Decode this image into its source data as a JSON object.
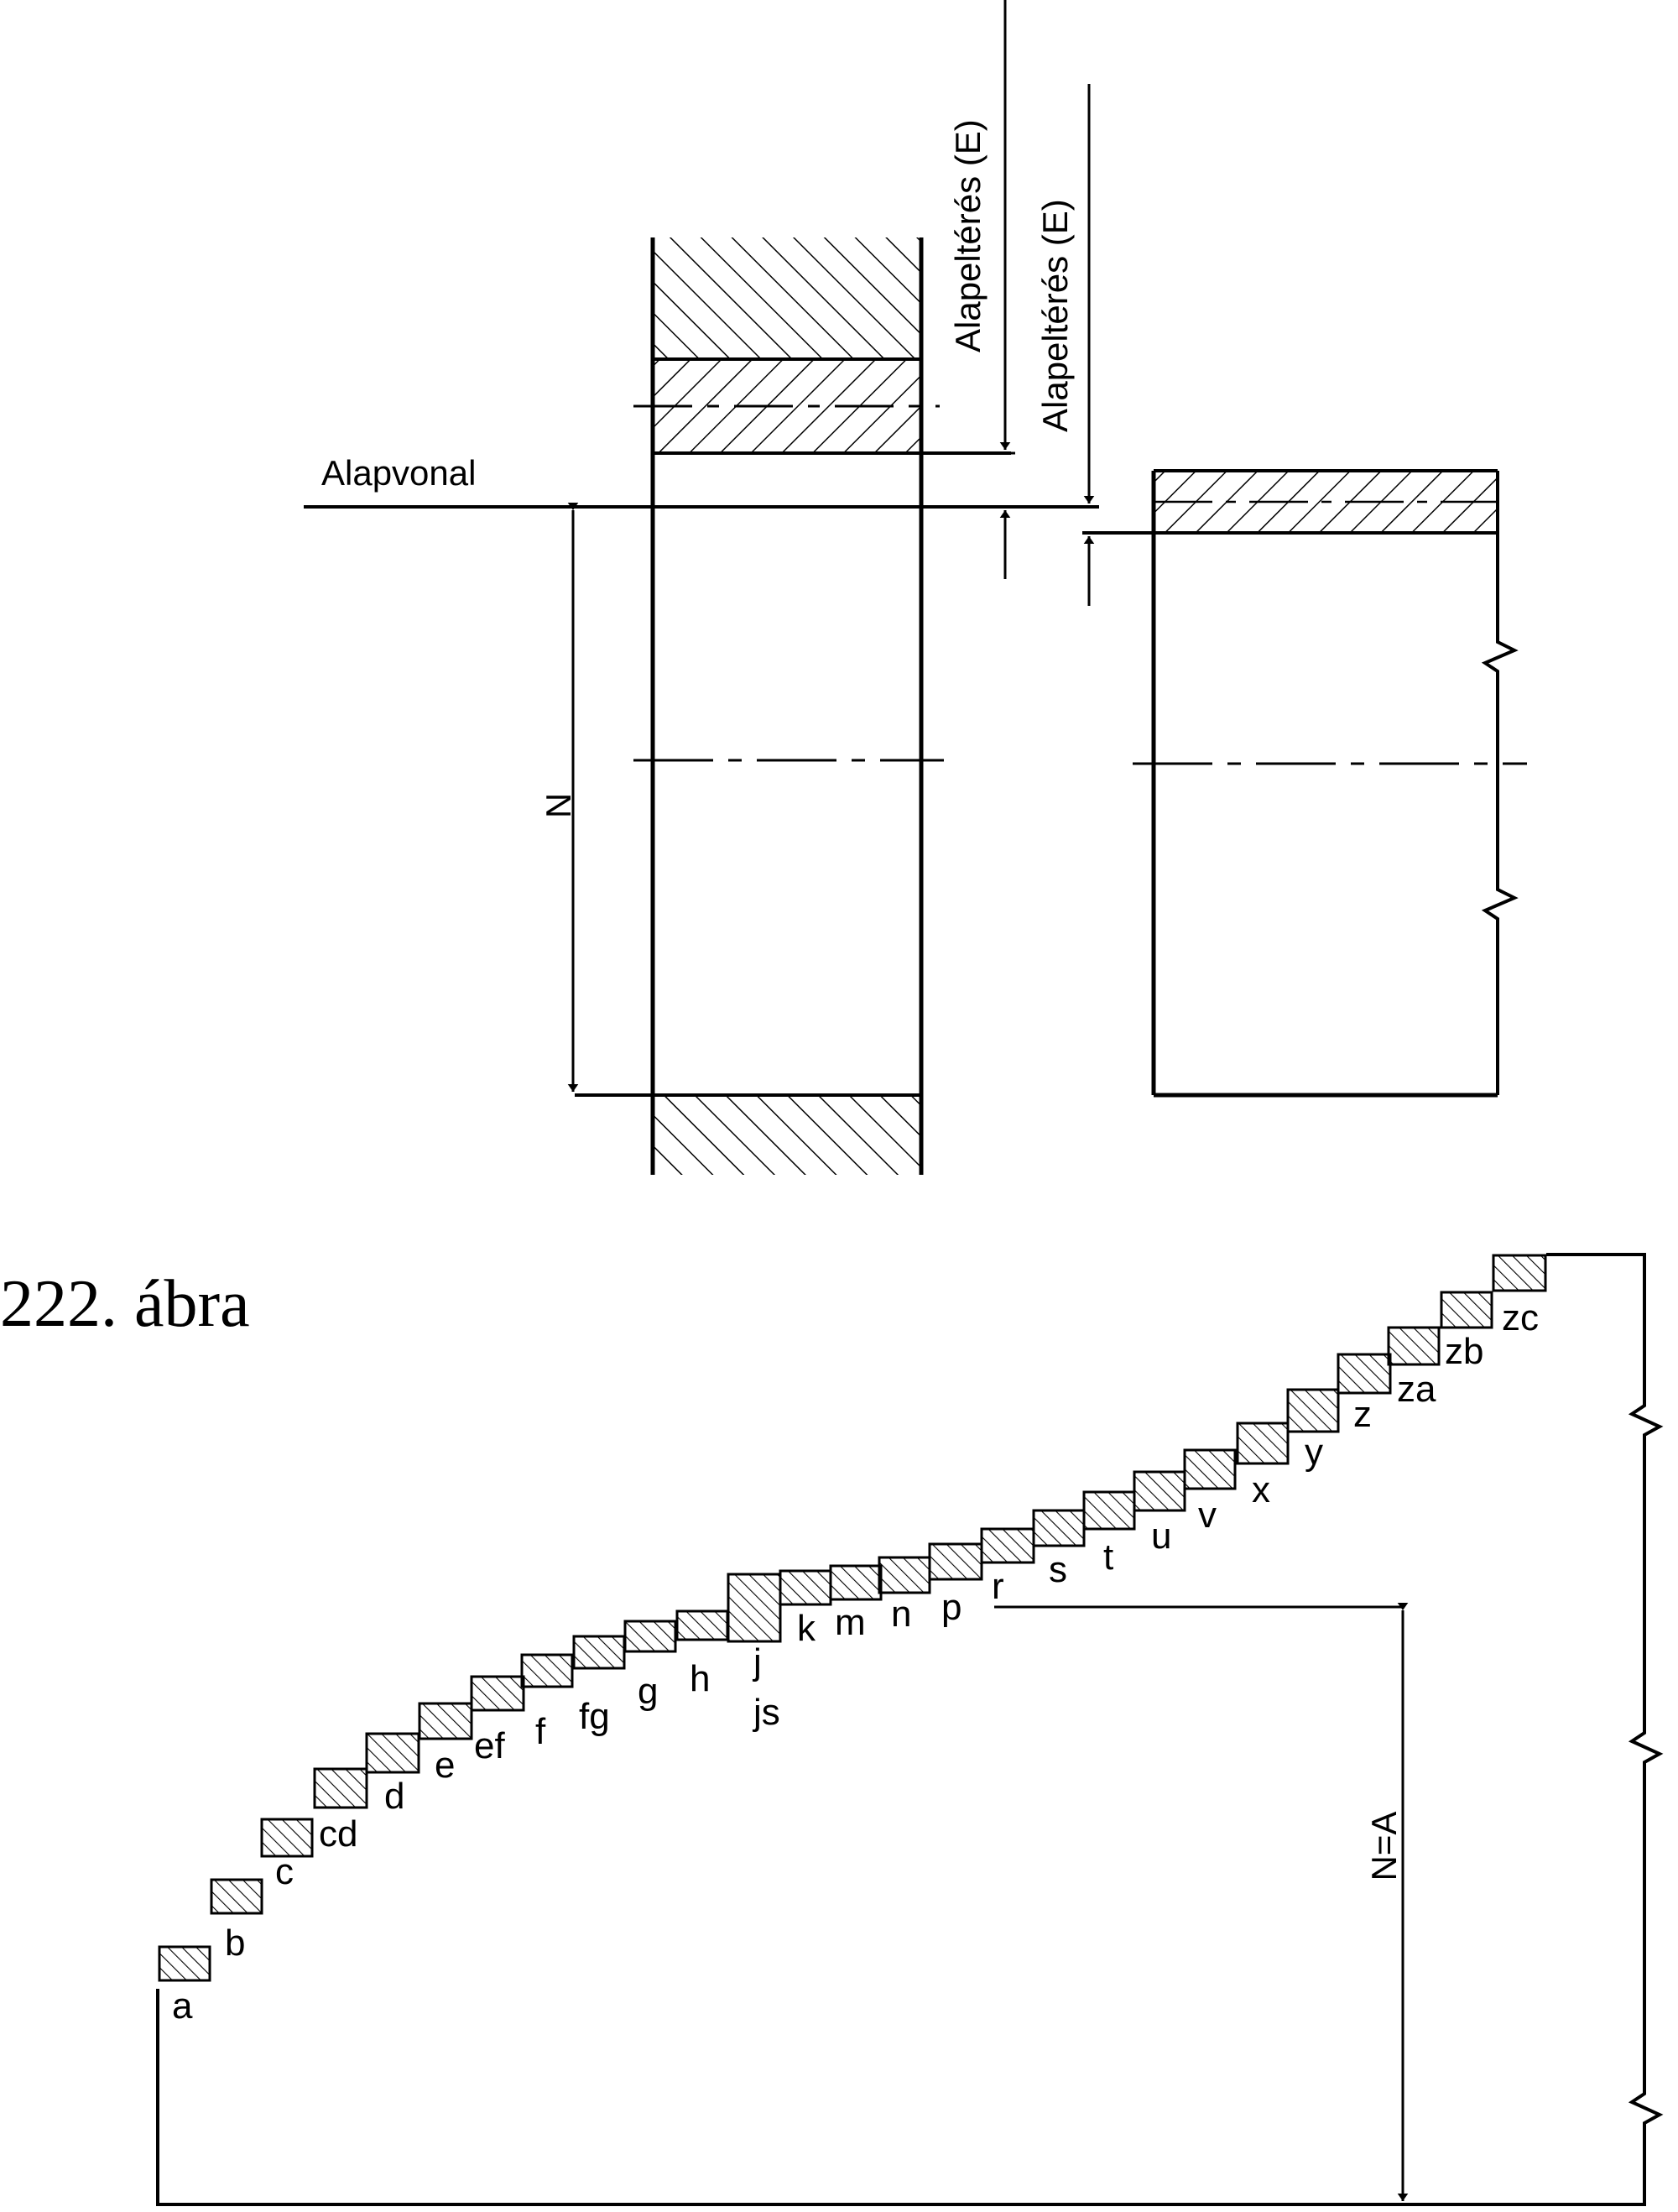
{
  "top_diagram": {
    "label_alapvonal": "Alapvonal",
    "label_deviation_hole": "Alapeltérés (E)",
    "label_deviation_shaft": "Alapeltérés (E)",
    "label_nominal": "N"
  },
  "caption": "222. ábra",
  "bottom_diagram": {
    "nominal_label": "N=A",
    "hole_positions": [
      "a",
      "b",
      "c",
      "cd",
      "d",
      "e",
      "ef",
      "f",
      "fg",
      "g",
      "h",
      "j",
      "js",
      "k",
      "m",
      "n",
      "p",
      "r",
      "s",
      "t",
      "u",
      "v",
      "x",
      "y",
      "z",
      "za",
      "zb",
      "zc"
    ]
  }
}
